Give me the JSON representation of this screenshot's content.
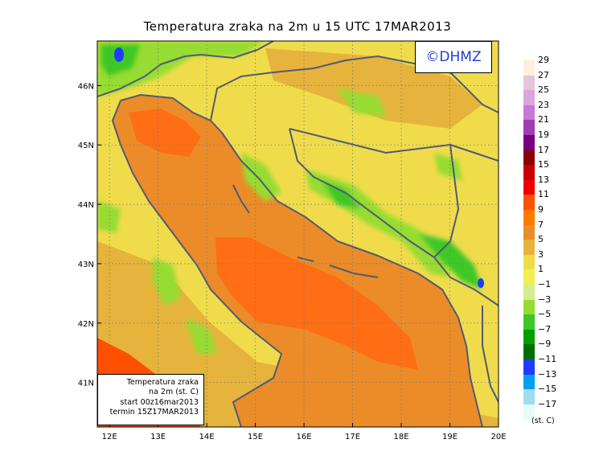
{
  "title": "Temperatura zraka na 2m u 15 UTC 17MAR2013",
  "copyright": "©DHMZ",
  "info_box": {
    "line1": "Temperatura zraka",
    "line2": "na 2m (st. C)",
    "line3": "start 00z16mar2013",
    "line4": "termin 15Z17MAR2013"
  },
  "map": {
    "lon_range": [
      11.75,
      20.0
    ],
    "lat_range": [
      40.25,
      46.75
    ],
    "lon_ticks": [
      "12E",
      "13E",
      "14E",
      "15E",
      "16E",
      "17E",
      "18E",
      "19E",
      "20E"
    ],
    "lat_ticks": [
      "41N",
      "42N",
      "43N",
      "44N",
      "45N",
      "46N"
    ],
    "grid": true
  },
  "legend": {
    "unit": "(st. C)",
    "labels": [
      "29",
      "27",
      "25",
      "23",
      "21",
      "19",
      "17",
      "15",
      "13",
      "11",
      "9",
      "7",
      "5",
      "3",
      "1",
      "−1",
      "−3",
      "−5",
      "−7",
      "−9",
      "−11",
      "−13",
      "−15",
      "−17"
    ],
    "colors": [
      "#fdeedd",
      "#e4c6dc",
      "#dca4dc",
      "#c878d8",
      "#a03cb4",
      "#780082",
      "#8c0000",
      "#c80000",
      "#f00000",
      "#ff5000",
      "#ff7800",
      "#eb8c28",
      "#e6b43c",
      "#f0dc4b",
      "#f0f050",
      "#d2f08c",
      "#96dc32",
      "#3cc828",
      "#00a000",
      "#006e00",
      "#1e3cff",
      "#00a0f0",
      "#a0dcf0",
      "#e6fafa"
    ]
  },
  "colors": {
    "sea": "#eb8c28",
    "sea_warm": "#ff6e14",
    "land": "#f0dc4b",
    "land_warm": "#e6b43c",
    "mountain_cold": "#96dc32",
    "mountain_colder": "#3cc828",
    "coast": "#505a78"
  }
}
